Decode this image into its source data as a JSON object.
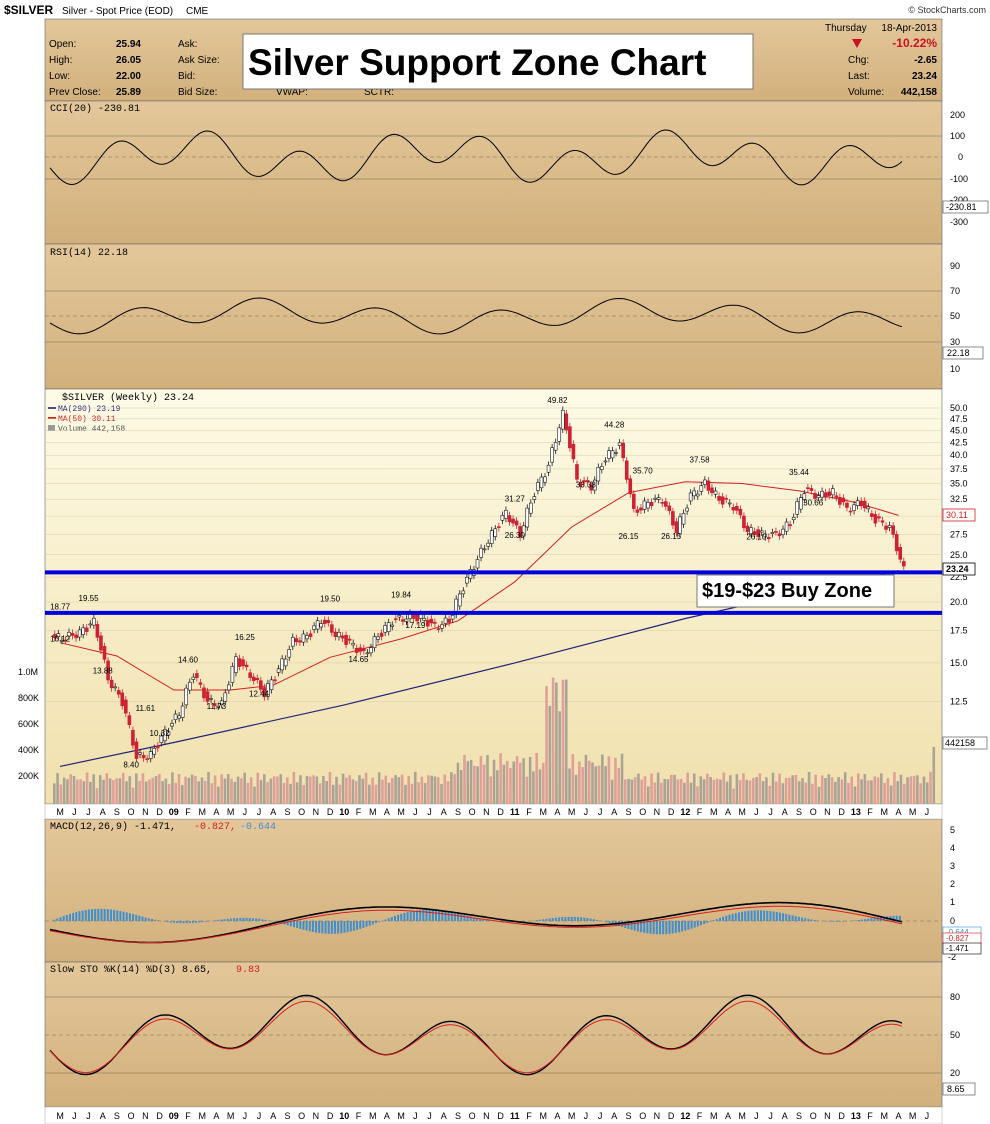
{
  "header": {
    "symbol": "$SILVER",
    "description": "Silver - Spot Price (EOD)",
    "exchange": "CME",
    "watermark": "© StockCharts.com",
    "date_day": "Thursday",
    "date": "18-Apr-2013",
    "pct_change": "-10.22%",
    "chg": "-2.65",
    "last": "23.24",
    "volume": "442,158",
    "quote_labels": {
      "open": "Open:",
      "high": "High:",
      "low": "Low:",
      "prev": "Prev Close:",
      "ask": "Ask:",
      "ask_size": "Ask Size:",
      "bid": "Bid:",
      "bid_size": "Bid Size:",
      "vwap": "VWAP:",
      "sctr": "SCTR:",
      "chg": "Chg:",
      "last": "Last:",
      "volume": "Volume:"
    },
    "open": "25.94",
    "high": "26.05",
    "low": "22.00",
    "prev_close": "25.89"
  },
  "overlay_title": "Silver Support Zone Chart",
  "buy_zone_label": "$19-$23 Buy Zone",
  "colors": {
    "panel_bg": "#d8b98a",
    "main_bg_top": "#fdfbe6",
    "main_bg_bottom": "#f3e4b4",
    "up_candle": "#1a1a1a",
    "down_candle": "#cc2233",
    "ma290": "#22227a",
    "ma50": "#d42020",
    "support_line": "#0000dd",
    "osc_green": "#5f7f3c",
    "osc_red": "#b05533",
    "histogram": "#3d8fd0"
  },
  "panels": {
    "cci": {
      "label": "CCI(20) -230.81",
      "value_tag": "-230.81",
      "ticks": [
        "200",
        "100",
        "0",
        "-100",
        "-200",
        "-300"
      ]
    },
    "rsi": {
      "label": "RSI(14) 22.18",
      "value_tag": "22.18",
      "ticks": [
        "90",
        "70",
        "50",
        "30",
        "10"
      ]
    },
    "price": {
      "label": "$SILVER (Weekly) 23.24",
      "ma290_label": "MA(290) 23.19",
      "ma50_label": "MA(50) 30.11",
      "volume_label": "Volume 442,158",
      "price_tag": "23.24",
      "ma50_tag": "30.11",
      "volume_tag": "442158",
      "volume_ticks": [
        "1.0M",
        "800K",
        "600K",
        "400K",
        "200K"
      ]
    },
    "macd": {
      "label_main": "MACD(12,26,9) -1.471,",
      "label_signal": "-0.827,",
      "label_hist": "-0.644",
      "tag_a": "-0.644",
      "tag_b": "-0.827",
      "tag_c": "-1.471",
      "ticks": [
        "5",
        "4",
        "3",
        "2",
        "1",
        "0",
        "-1",
        "-2"
      ]
    },
    "sto": {
      "label_main": "Slow STO %K(14) %D(3) 8.65,",
      "label_d": "9.83",
      "value_tag": "8.65",
      "ticks": [
        "80",
        "50",
        "20"
      ]
    }
  },
  "x_axis_labels": [
    "M",
    "J",
    "J",
    "A",
    "S",
    "O",
    "N",
    "D",
    "09",
    "F",
    "M",
    "A",
    "M",
    "J",
    "J",
    "A",
    "S",
    "O",
    "N",
    "D",
    "10",
    "F",
    "M",
    "A",
    "M",
    "J",
    "J",
    "A",
    "S",
    "O",
    "N",
    "D",
    "11",
    "F",
    "M",
    "A",
    "M",
    "J",
    "J",
    "A",
    "S",
    "O",
    "N",
    "D",
    "12",
    "F",
    "M",
    "A",
    "M",
    "J",
    "J",
    "A",
    "S",
    "O",
    "N",
    "D",
    "13",
    "F",
    "M",
    "A",
    "M",
    "J"
  ],
  "chart_data": {
    "type": "line",
    "title": "Silver Support Zone Chart",
    "x_range": [
      "2008-05",
      "2013-06"
    ],
    "y_scale": "log",
    "ylim": [
      11,
      52
    ],
    "y_ticks": [
      "50.0",
      "47.5",
      "45.0",
      "42.5",
      "40.0",
      "37.5",
      "35.0",
      "32.5",
      "30.0",
      "27.5",
      "25.0",
      "22.5",
      "20.0",
      "17.5",
      "15.0",
      "12.5"
    ],
    "price_path": [
      {
        "date": "2008-05",
        "v": 16.9
      },
      {
        "date": "2008-06",
        "v": 17.3
      },
      {
        "date": "2008-07",
        "v": 18.2
      },
      {
        "date": "2008-08",
        "v": 13.9
      },
      {
        "date": "2008-09",
        "v": 12.5
      },
      {
        "date": "2008-10",
        "v": 9.6
      },
      {
        "date": "2008-11",
        "v": 9.7
      },
      {
        "date": "2008-12",
        "v": 10.8
      },
      {
        "date": "2009-01",
        "v": 11.8
      },
      {
        "date": "2009-02",
        "v": 14.3
      },
      {
        "date": "2009-03",
        "v": 12.5
      },
      {
        "date": "2009-04",
        "v": 12.3
      },
      {
        "date": "2009-05",
        "v": 15.3
      },
      {
        "date": "2009-06",
        "v": 14.2
      },
      {
        "date": "2009-07",
        "v": 13.0
      },
      {
        "date": "2009-08",
        "v": 14.5
      },
      {
        "date": "2009-09",
        "v": 16.6
      },
      {
        "date": "2009-10",
        "v": 17.0
      },
      {
        "date": "2009-11",
        "v": 18.4
      },
      {
        "date": "2009-12",
        "v": 17.2
      },
      {
        "date": "2010-01",
        "v": 16.5
      },
      {
        "date": "2010-02",
        "v": 15.6
      },
      {
        "date": "2010-03",
        "v": 17.0
      },
      {
        "date": "2010-04",
        "v": 18.3
      },
      {
        "date": "2010-05",
        "v": 18.6
      },
      {
        "date": "2010-06",
        "v": 18.6
      },
      {
        "date": "2010-07",
        "v": 17.8
      },
      {
        "date": "2010-08",
        "v": 18.3
      },
      {
        "date": "2010-09",
        "v": 21.5
      },
      {
        "date": "2010-10",
        "v": 24.5
      },
      {
        "date": "2010-11",
        "v": 27.5
      },
      {
        "date": "2010-12",
        "v": 30.5
      },
      {
        "date": "2011-01",
        "v": 27.5
      },
      {
        "date": "2011-02",
        "v": 33.5
      },
      {
        "date": "2011-03",
        "v": 38.0
      },
      {
        "date": "2011-04",
        "v": 48.5
      },
      {
        "date": "2011-05",
        "v": 35.5
      },
      {
        "date": "2011-06",
        "v": 34.5
      },
      {
        "date": "2011-07",
        "v": 39.5
      },
      {
        "date": "2011-08",
        "v": 42.0
      },
      {
        "date": "2011-09",
        "v": 30.5
      },
      {
        "date": "2011-10",
        "v": 32.0
      },
      {
        "date": "2011-11",
        "v": 32.5
      },
      {
        "date": "2011-12",
        "v": 28.0
      },
      {
        "date": "2012-01",
        "v": 33.0
      },
      {
        "date": "2012-02",
        "v": 35.0
      },
      {
        "date": "2012-03",
        "v": 32.5
      },
      {
        "date": "2012-04",
        "v": 31.5
      },
      {
        "date": "2012-05",
        "v": 28.0
      },
      {
        "date": "2012-06",
        "v": 27.5
      },
      {
        "date": "2012-07",
        "v": 27.5
      },
      {
        "date": "2012-08",
        "v": 29.0
      },
      {
        "date": "2012-09",
        "v": 34.0
      },
      {
        "date": "2012-10",
        "v": 33.0
      },
      {
        "date": "2012-11",
        "v": 33.5
      },
      {
        "date": "2012-12",
        "v": 31.0
      },
      {
        "date": "2013-01",
        "v": 32.0
      },
      {
        "date": "2013-02",
        "v": 29.5
      },
      {
        "date": "2013-03",
        "v": 28.5
      },
      {
        "date": "2013-04",
        "v": 23.24
      }
    ],
    "ma50": [
      {
        "date": "2008-05",
        "v": 16.5
      },
      {
        "date": "2008-09",
        "v": 15.5
      },
      {
        "date": "2009-01",
        "v": 13.2
      },
      {
        "date": "2009-05",
        "v": 13.2
      },
      {
        "date": "2009-08",
        "v": 13.5
      },
      {
        "date": "2009-12",
        "v": 15.4
      },
      {
        "date": "2010-05",
        "v": 16.8
      },
      {
        "date": "2010-09",
        "v": 18.3
      },
      {
        "date": "2011-01",
        "v": 22.0
      },
      {
        "date": "2011-05",
        "v": 28.5
      },
      {
        "date": "2011-09",
        "v": 33.5
      },
      {
        "date": "2012-01",
        "v": 35.3
      },
      {
        "date": "2012-05",
        "v": 35.0
      },
      {
        "date": "2012-09",
        "v": 33.8
      },
      {
        "date": "2013-01",
        "v": 32.0
      },
      {
        "date": "2013-04",
        "v": 30.11
      }
    ],
    "ma290": [
      {
        "date": "2008-05",
        "v": 9.2
      },
      {
        "date": "2009-01",
        "v": 10.3
      },
      {
        "date": "2010-01",
        "v": 12.3
      },
      {
        "date": "2011-01",
        "v": 15.0
      },
      {
        "date": "2012-01",
        "v": 18.5
      },
      {
        "date": "2013-04",
        "v": 23.19
      }
    ],
    "annotations": [
      {
        "date": "2008-05",
        "label": "18.77"
      },
      {
        "date": "2008-05",
        "label": "16.12"
      },
      {
        "date": "2008-07",
        "label": "19.55"
      },
      {
        "date": "2008-08",
        "label": "13.88"
      },
      {
        "date": "2008-10",
        "label": "8.40"
      },
      {
        "date": "2008-11",
        "label": "11.61"
      },
      {
        "date": "2008-12",
        "label": "10.32"
      },
      {
        "date": "2009-02",
        "label": "14.60"
      },
      {
        "date": "2009-04",
        "label": "11.73"
      },
      {
        "date": "2009-06",
        "label": "16.25"
      },
      {
        "date": "2009-07",
        "label": "12.44"
      },
      {
        "date": "2009-12",
        "label": "19.50"
      },
      {
        "date": "2010-02",
        "label": "14.65"
      },
      {
        "date": "2010-05",
        "label": "19.84"
      },
      {
        "date": "2010-06",
        "label": "17.19"
      },
      {
        "date": "2011-01",
        "label": "31.27"
      },
      {
        "date": "2011-01",
        "label": "26.30"
      },
      {
        "date": "2011-04",
        "label": "49.82"
      },
      {
        "date": "2011-06",
        "label": "33.38"
      },
      {
        "date": "2011-08",
        "label": "44.28"
      },
      {
        "date": "2011-10",
        "label": "35.70"
      },
      {
        "date": "2011-09",
        "label": "26.15"
      },
      {
        "date": "2011-12",
        "label": "26.15"
      },
      {
        "date": "2012-02",
        "label": "37.58"
      },
      {
        "date": "2012-06",
        "label": "26.10"
      },
      {
        "date": "2012-09",
        "label": "35.44"
      },
      {
        "date": "2012-10",
        "label": "30.66"
      }
    ],
    "support_zone": {
      "upper": 23,
      "lower": 19
    },
    "volume_peak": {
      "date": "2011-04",
      "value": 1000000
    },
    "volume_last": 442158
  }
}
